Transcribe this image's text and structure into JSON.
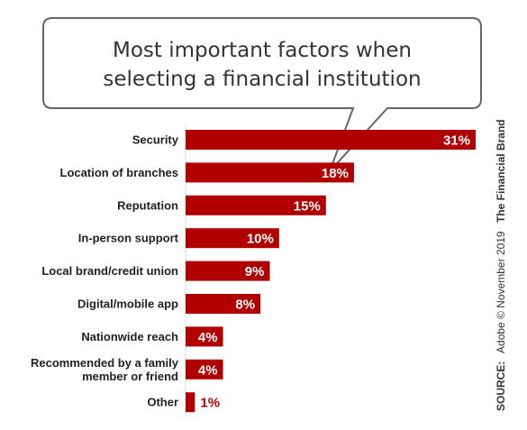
{
  "chart_data": {
    "type": "bar",
    "orientation": "horizontal",
    "title_lines": [
      "Most important factors when",
      "selecting a financial institution"
    ],
    "categories": [
      [
        "Security"
      ],
      [
        "Location of branches"
      ],
      [
        "Reputation"
      ],
      [
        "In-person support"
      ],
      [
        "Local brand/credit union"
      ],
      [
        "Digital/mobile app"
      ],
      [
        "Nationwide reach"
      ],
      [
        "Recommended by a family",
        "member or friend"
      ],
      [
        "Other"
      ]
    ],
    "values": [
      31,
      18,
      15,
      10,
      9,
      8,
      4,
      4,
      1
    ],
    "value_labels": [
      "31%",
      "18%",
      "15%",
      "10%",
      "9%",
      "8%",
      "4%",
      "4%",
      "1%"
    ],
    "xlim": [
      0,
      31
    ],
    "grid": false,
    "legend": "none",
    "bar_color": "#b00000"
  },
  "source": {
    "prefix": "SOURCE:",
    "text": "Adobe © November 2019",
    "brand": "The Financial Brand"
  }
}
